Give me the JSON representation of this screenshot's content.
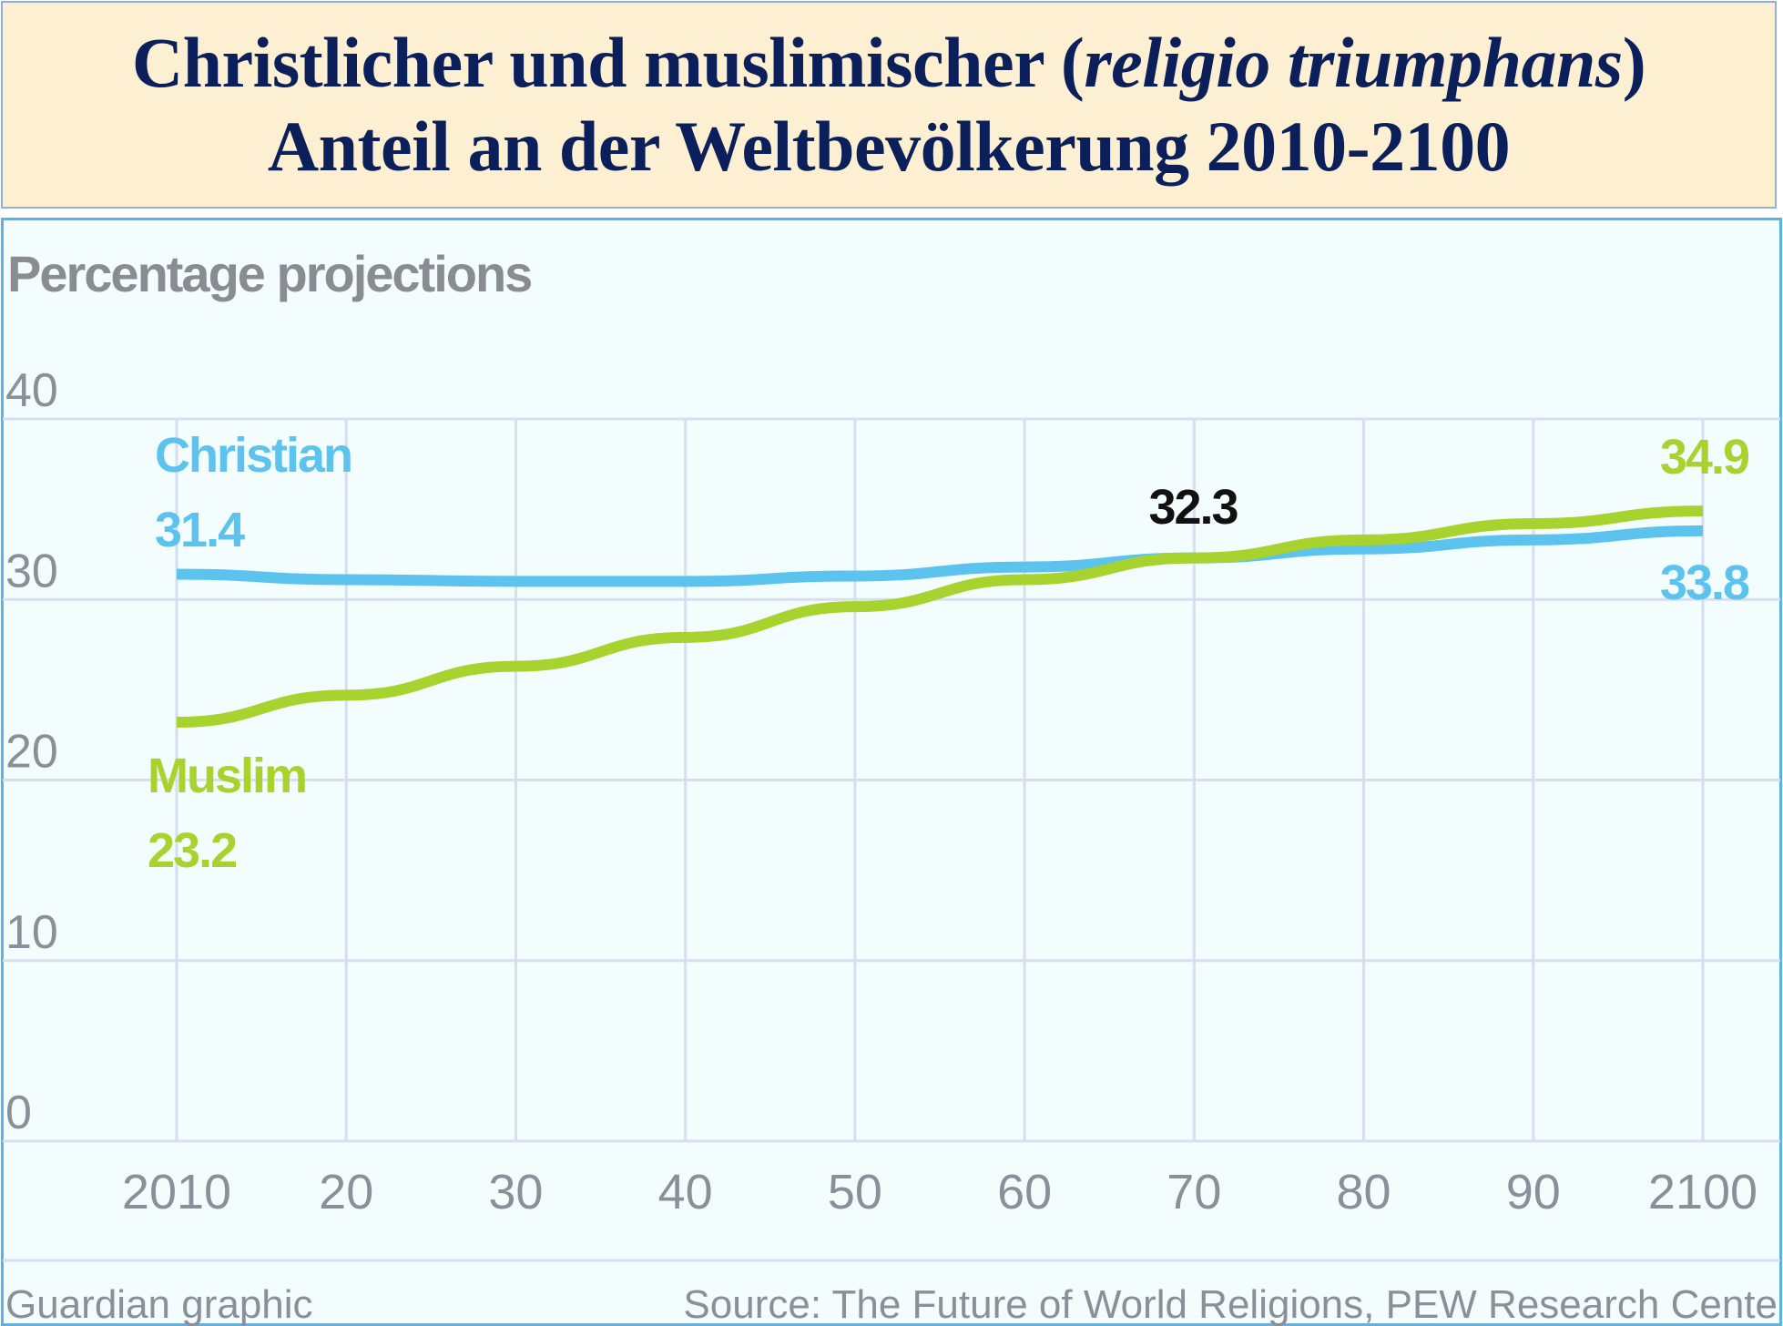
{
  "header": {
    "title_line1_prefix": "Christlicher und muslimischer (",
    "title_line1_italic": "religio triumphans",
    "title_line1_suffix": ")",
    "title_line2": "Anteil an der Weltbevölkerung 2010-2100"
  },
  "chart_data": {
    "type": "line",
    "subtitle": "Percentage projections",
    "x": [
      2010,
      2020,
      2030,
      2040,
      2050,
      2060,
      2070,
      2080,
      2090,
      2100
    ],
    "x_tick_labels": [
      "2010",
      "20",
      "30",
      "40",
      "50",
      "60",
      "70",
      "80",
      "90",
      "2100"
    ],
    "y_ticks": [
      "0",
      "10",
      "20",
      "30",
      "40"
    ],
    "ylim": [
      0,
      40
    ],
    "grid": true,
    "series": [
      {
        "name": "Christian",
        "color": "#5cc3ee",
        "values": [
          31.4,
          31.1,
          31.0,
          31.0,
          31.3,
          31.8,
          32.3,
          32.8,
          33.3,
          33.8
        ],
        "start_label": "31.4",
        "end_label": "33.8"
      },
      {
        "name": "Muslim",
        "color": "#a8d22e",
        "values": [
          23.2,
          24.7,
          26.3,
          27.9,
          29.6,
          31.1,
          32.3,
          33.3,
          34.2,
          34.9
        ],
        "start_label": "23.2",
        "end_label": "34.9"
      }
    ],
    "annotations": [
      {
        "text": "32.3",
        "x": 2070,
        "y": 32.3,
        "note": "crossover"
      }
    ]
  },
  "footer": {
    "credit": "Guardian graphic",
    "source": "Source: The Future of World Religions, PEW Research Cente"
  }
}
